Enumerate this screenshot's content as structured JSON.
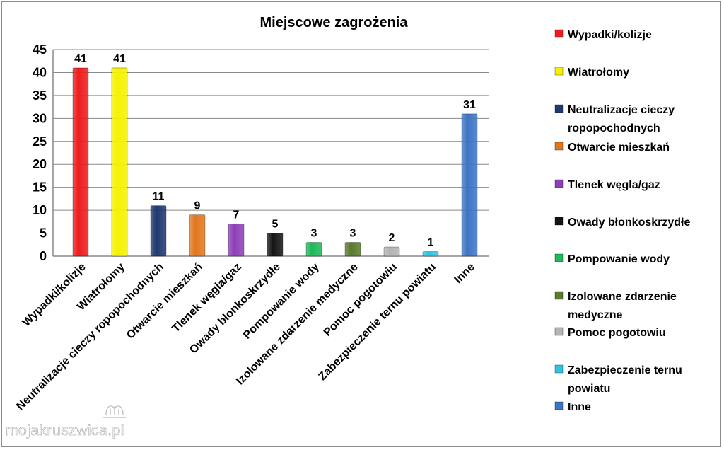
{
  "chart_data": {
    "type": "bar",
    "title": "Miejscowe zagrożenia",
    "xlabel": "",
    "ylabel": "",
    "ylim": [
      0,
      45
    ],
    "yticks": [
      0,
      5,
      10,
      15,
      20,
      25,
      30,
      35,
      40,
      45
    ],
    "grid": true,
    "legend_position": "right",
    "categories": [
      "Wypadki/kolizje",
      "Wiatrołomy",
      "Neutralizacje cieczy ropopochodnych",
      "Otwarcie mieszkań",
      "Tlenek węgla/gaz",
      "Owady błonkoskrzydłe",
      "Pompowanie wody",
      "Izolowane zdarzenie medyczne",
      "Pomoc pogotowiu",
      "Zabezpieczenie ternu powiatu",
      "Inne"
    ],
    "values": [
      41,
      41,
      11,
      9,
      7,
      5,
      3,
      3,
      2,
      1,
      31
    ],
    "colors": [
      "#ee1c1c",
      "#f5f200",
      "#1f3870",
      "#e07820",
      "#8e3fb8",
      "#141414",
      "#1fb85a",
      "#5a7a2e",
      "#b4b4b4",
      "#2ec4e8",
      "#3e74c4"
    ],
    "legend": [
      [
        "Wypadki/kolizje"
      ],
      [
        "Wiatrołomy"
      ],
      [
        "Neutralizacje cieczy",
        "ropopochodnych"
      ],
      [
        "Otwarcie mieszkań"
      ],
      [
        "Tlenek węgla/gaz"
      ],
      [
        "Owady błonkoskrzydłe"
      ],
      [
        "Pompowanie wody"
      ],
      [
        "Izolowane zdarzenie",
        "medyczne"
      ],
      [
        "Pomoc pogotowiu"
      ],
      [
        "Zabezpieczenie ternu",
        "powiatu"
      ],
      [
        "Inne"
      ]
    ]
  },
  "watermark": {
    "text": "mojakruszwica.pl"
  }
}
